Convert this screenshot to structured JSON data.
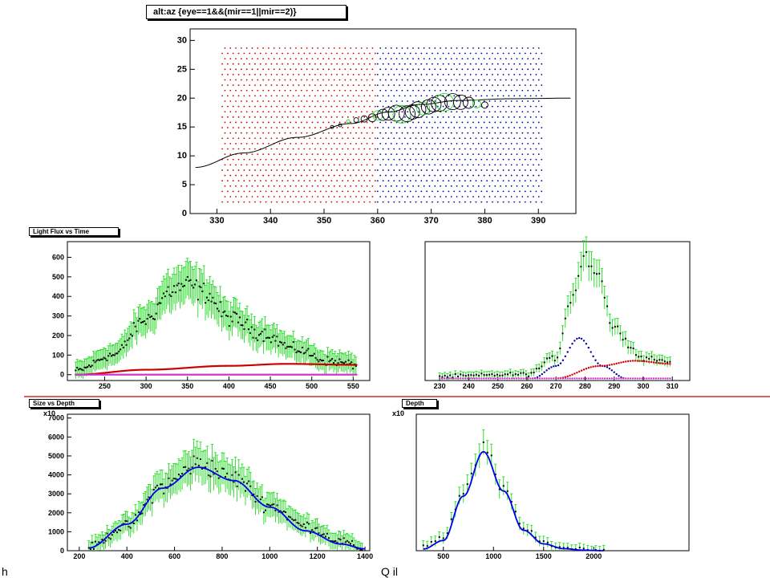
{
  "colors": {
    "red": "#cc0000",
    "blue": "#0000aa",
    "green": "#22dd22",
    "magenta": "#cc33cc",
    "fit_blue": "#0000ee",
    "sep_line": "#cc0000",
    "black": "#000000"
  },
  "chart_data": [
    {
      "type": "scatter",
      "title": "alt:az {eye==1&&(mir==1||mir==2)}",
      "xlim": [
        325,
        397
      ],
      "ylim": [
        0,
        32
      ],
      "x_ticks": [
        "330",
        "340",
        "350",
        "360",
        "370",
        "380",
        "390"
      ],
      "y_ticks": [
        "0",
        "5",
        "10",
        "15",
        "20",
        "25",
        "30"
      ],
      "series": [
        {
          "role": "tube grid mirror 1",
          "color": "red",
          "x_range": [
            331,
            360
          ],
          "y_range": [
            2,
            29.5
          ]
        },
        {
          "role": "tube grid mirror 2",
          "color": "blue",
          "x_range": [
            360,
            391
          ],
          "y_range": [
            2,
            29.5
          ]
        },
        {
          "role": "track fit",
          "color": "black",
          "x": [
            326,
            335,
            345,
            355,
            362,
            368,
            375,
            385,
            396
          ],
          "y": [
            8,
            10.5,
            13.2,
            15.6,
            17.6,
            18.9,
            19.6,
            19.9,
            20
          ]
        },
        {
          "role": "hit circles",
          "color": "black",
          "x": [
            351.5,
            353,
            354.5,
            356,
            357.5,
            359,
            360,
            361,
            362,
            363.5,
            364.5,
            365.5,
            366.5,
            367.5,
            368.5,
            369.5,
            370.5,
            371.5,
            372.5,
            374,
            375.5,
            377,
            378.5,
            380
          ],
          "y": [
            15,
            15.3,
            16,
            16.2,
            16.4,
            16.6,
            17,
            17.1,
            17.3,
            17.4,
            17.2,
            17.3,
            17.6,
            18,
            18.2,
            18.5,
            18.9,
            19.1,
            19.3,
            19.4,
            19.3,
            19.2,
            19,
            18.8
          ],
          "size": [
            2,
            2,
            2,
            3,
            4,
            5,
            6,
            7,
            8,
            10,
            11,
            10,
            9,
            10,
            8,
            9,
            9,
            10,
            11,
            10,
            9,
            7,
            5,
            4
          ]
        }
      ]
    },
    {
      "type": "scatter",
      "title": "Light Flux vs Time",
      "xlim": [
        205,
        570
      ],
      "ylim": [
        -30,
        680
      ],
      "x_ticks": [
        "250",
        "300",
        "350",
        "400",
        "450",
        "500",
        "550"
      ],
      "y_ticks": [
        "0",
        "100",
        "200",
        "300",
        "400",
        "500",
        "600"
      ],
      "series": [
        {
          "role": "measured flux",
          "color": "green",
          "x": [
            215,
            260,
            300,
            330,
            350,
            370,
            400,
            440,
            480,
            520,
            555
          ],
          "y": [
            20,
            100,
            280,
            430,
            460,
            420,
            290,
            210,
            130,
            70,
            50
          ]
        },
        {
          "role": "component",
          "color": "red",
          "x": [
            215,
            300,
            400,
            470,
            555
          ],
          "y": [
            0,
            25,
            45,
            55,
            50
          ]
        },
        {
          "role": "component",
          "color": "magenta",
          "x": [
            215,
            555
          ],
          "y": [
            0,
            0
          ]
        }
      ]
    },
    {
      "type": "scatter",
      "xlim": [
        225,
        316
      ],
      "ylim": [
        -10,
        660
      ],
      "x_ticks": [
        "230",
        "240",
        "250",
        "260",
        "270",
        "280",
        "290",
        "300",
        "310"
      ],
      "series": [
        {
          "role": "measured flux",
          "color": "green",
          "x": [
            230,
            260,
            270,
            275,
            280,
            284,
            290,
            300,
            310
          ],
          "y": [
            10,
            20,
            100,
            380,
            590,
            520,
            240,
            100,
            80
          ]
        },
        {
          "role": "component",
          "color": "blue",
          "x": [
            262,
            270,
            278,
            286,
            294
          ],
          "y": [
            0,
            60,
            195,
            60,
            0
          ]
        },
        {
          "role": "component",
          "color": "red",
          "x": [
            270,
            285,
            297,
            310
          ],
          "y": [
            0,
            60,
            85,
            70
          ]
        },
        {
          "role": "component",
          "color": "magenta",
          "x": [
            230,
            310
          ],
          "y": [
            0,
            0
          ]
        }
      ]
    },
    {
      "type": "scatter",
      "title": "Size vs Depth",
      "xlim": [
        150,
        1420
      ],
      "ylim": [
        0,
        7200
      ],
      "x_ticks": [
        "200",
        "400",
        "600",
        "800",
        "1000",
        "1200",
        "1400"
      ],
      "y_ticks": [
        "0",
        "1000",
        "2000",
        "3000",
        "4000",
        "5000",
        "6000",
        "7000"
      ],
      "y_multiplier": "x10",
      "series": [
        {
          "role": "measured size",
          "color": "green",
          "x": [
            240,
            400,
            550,
            700,
            850,
            1000,
            1150,
            1300,
            1390
          ],
          "y": [
            200,
            1300,
            3400,
            4600,
            3800,
            2400,
            1300,
            500,
            100
          ]
        },
        {
          "role": "fit",
          "color": "fit_blue",
          "x": [
            240,
            400,
            550,
            700,
            850,
            1000,
            1150,
            1300,
            1400
          ],
          "y": [
            150,
            1400,
            3300,
            4400,
            3700,
            2300,
            1050,
            350,
            100
          ]
        }
      ]
    },
    {
      "type": "scatter",
      "title": "Depth",
      "xlim": [
        230,
        2950
      ],
      "ylim": [
        0,
        8000
      ],
      "x_ticks": [
        "500",
        "1000",
        "1500",
        "2000"
      ],
      "y_multiplier": "x10",
      "series": [
        {
          "role": "measured",
          "color": "green",
          "x": [
            300,
            500,
            700,
            900,
            1100,
            1300,
            1500,
            1700,
            1900,
            2100
          ],
          "y": [
            300,
            800,
            3500,
            6000,
            3600,
            1300,
            500,
            150,
            50,
            0
          ]
        },
        {
          "role": "fit",
          "color": "fit_blue",
          "x": [
            300,
            500,
            700,
            900,
            1100,
            1300,
            1500,
            1700,
            1900,
            2100
          ],
          "y": [
            100,
            600,
            3200,
            5800,
            3500,
            1200,
            400,
            120,
            30,
            0
          ]
        }
      ]
    }
  ],
  "footer": {
    "left_text": "h",
    "right_text": "Q il"
  }
}
